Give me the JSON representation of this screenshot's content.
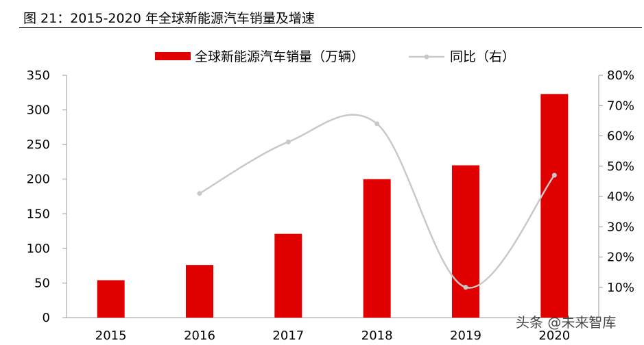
{
  "title": "图 21：2015-2020 年全球新能源汽车销量及增速",
  "watermark": "头条 @未来智库",
  "colors": {
    "bar": "#e00000",
    "line": "#c8c8c8",
    "axis": "#999999"
  },
  "chart_data": {
    "type": "bar",
    "categories": [
      "2015",
      "2016",
      "2017",
      "2018",
      "2019",
      "2020"
    ],
    "series": [
      {
        "name": "全球新能源汽车销量（万辆）",
        "type": "bar",
        "axis": "left",
        "values": [
          54,
          76,
          121,
          200,
          220,
          323
        ]
      },
      {
        "name": "同比（右）",
        "type": "line",
        "axis": "right",
        "values": [
          null,
          41,
          58,
          64,
          10,
          47
        ],
        "unit": "%"
      }
    ],
    "y_left": {
      "min": 0,
      "max": 350,
      "ticks": [
        "0",
        "50",
        "100",
        "150",
        "200",
        "250",
        "300",
        "350"
      ]
    },
    "y_right": {
      "min": 0,
      "max": 80,
      "ticks": [
        "10%",
        "20%",
        "30%",
        "40%",
        "50%",
        "60%",
        "70%",
        "80%"
      ]
    },
    "legend_position": "top-center"
  }
}
